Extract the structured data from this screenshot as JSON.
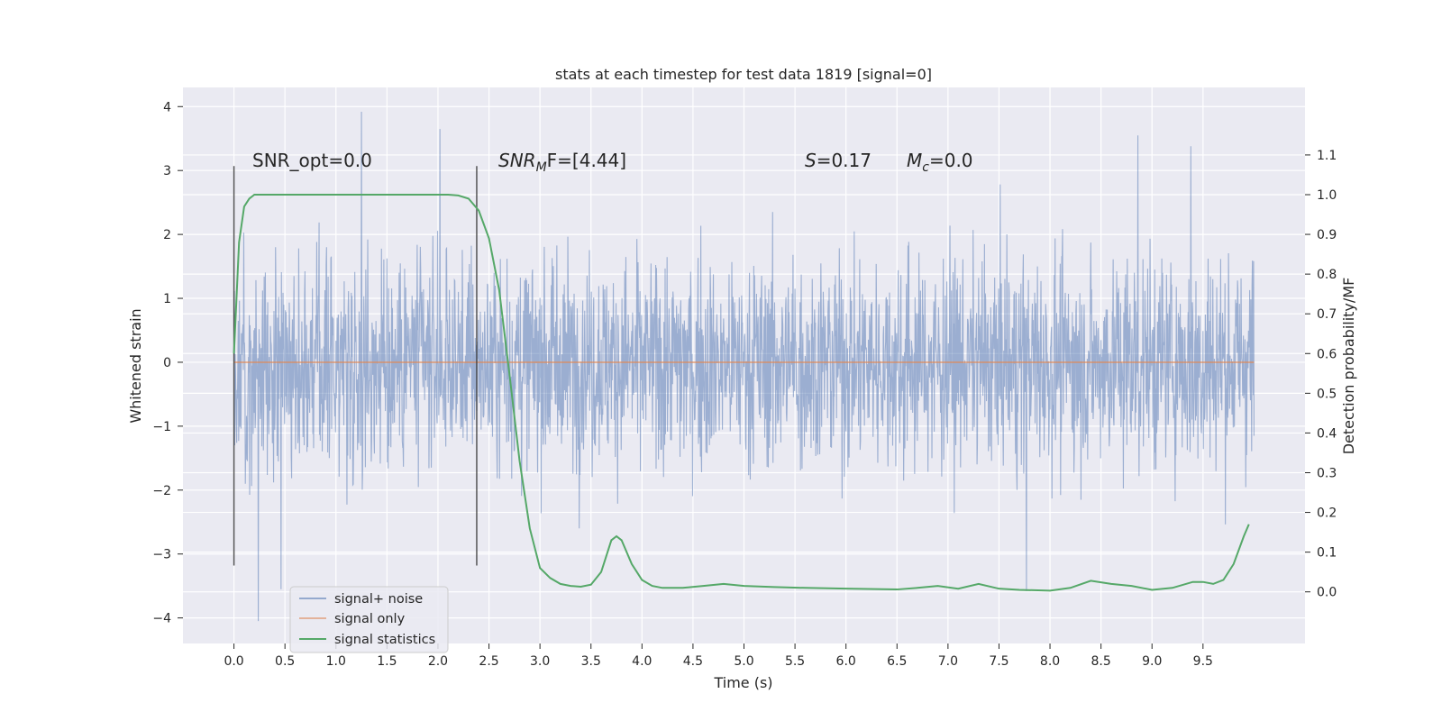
{
  "chart_data": {
    "type": "line",
    "title": "stats at each timestep for test data 1819 [signal=0]",
    "xlabel": "Time (s)",
    "ylabel": "Whitened strain",
    "y2label": "Detection probability/MF",
    "xlim": [
      -0.5,
      10.5
    ],
    "ylim": [
      -4.4,
      4.3
    ],
    "y2lim": [
      -0.13,
      1.27
    ],
    "x_ticks": [
      "0.0",
      "0.5",
      "1.0",
      "1.5",
      "2.0",
      "2.5",
      "3.0",
      "3.5",
      "4.0",
      "4.5",
      "5.0",
      "5.5",
      "6.0",
      "6.5",
      "7.0",
      "7.5",
      "8.0",
      "8.5",
      "9.0",
      "9.5"
    ],
    "y_ticks": [
      "4",
      "3",
      "2",
      "1",
      "0",
      "−1",
      "−2",
      "−3",
      "−4"
    ],
    "y2_ticks": [
      "1.1",
      "1.0",
      "0.9",
      "0.8",
      "0.7",
      "0.6",
      "0.5",
      "0.4",
      "0.3",
      "0.2",
      "0.1",
      "0.0"
    ],
    "grid": true,
    "legend_position": "lower-left",
    "annotations": {
      "snr_opt": "SNR_opt=0.0",
      "snr_mf_sym": "SNR",
      "snr_mf_sub": "M",
      "snr_mf_rest": "F=[4.44]",
      "s_sym": "S",
      "s_rest": "=0.17",
      "mc_sym": "M",
      "mc_sub": "c",
      "mc_rest": "=0.0"
    },
    "vlines_x": [
      0.0,
      2.38
    ],
    "series": [
      {
        "name": "signal+ noise",
        "color": "#4c72b0",
        "note": "dense noise trace sampled across 0–10 s",
        "x_range": [
          0.0,
          10.0
        ],
        "typical_range": [
          -2.0,
          2.2
        ],
        "peak_max": 3.92,
        "peak_min": -4.05
      },
      {
        "name": "signal only",
        "color": "#dd8452",
        "x": [
          0.0,
          10.0
        ],
        "y": [
          0.0,
          0.0
        ]
      },
      {
        "name": "signal statistics",
        "color": "#55a868",
        "axis": "right",
        "x": [
          0.0,
          0.05,
          0.1,
          0.15,
          0.2,
          0.3,
          0.5,
          1.0,
          1.5,
          2.0,
          2.1,
          2.2,
          2.3,
          2.4,
          2.5,
          2.6,
          2.7,
          2.8,
          2.9,
          3.0,
          3.1,
          3.2,
          3.3,
          3.4,
          3.5,
          3.6,
          3.65,
          3.7,
          3.75,
          3.8,
          3.9,
          4.0,
          4.1,
          4.2,
          4.4,
          4.6,
          4.8,
          5.0,
          5.3,
          5.6,
          6.0,
          6.5,
          6.7,
          6.9,
          7.1,
          7.3,
          7.5,
          7.7,
          8.0,
          8.2,
          8.4,
          8.6,
          8.8,
          9.0,
          9.2,
          9.4,
          9.5,
          9.6,
          9.7,
          9.8,
          9.9,
          9.95
        ],
        "y": [
          0.6,
          0.88,
          0.97,
          0.99,
          1.0,
          1.0,
          1.0,
          1.0,
          1.0,
          1.0,
          1.0,
          0.998,
          0.99,
          0.96,
          0.89,
          0.76,
          0.55,
          0.33,
          0.16,
          0.06,
          0.035,
          0.02,
          0.015,
          0.013,
          0.018,
          0.05,
          0.09,
          0.13,
          0.14,
          0.13,
          0.07,
          0.03,
          0.015,
          0.01,
          0.01,
          0.015,
          0.02,
          0.015,
          0.012,
          0.01,
          0.008,
          0.006,
          0.01,
          0.015,
          0.008,
          0.02,
          0.008,
          0.005,
          0.003,
          0.01,
          0.028,
          0.02,
          0.015,
          0.005,
          0.01,
          0.025,
          0.025,
          0.02,
          0.03,
          0.07,
          0.14,
          0.17
        ]
      }
    ]
  }
}
